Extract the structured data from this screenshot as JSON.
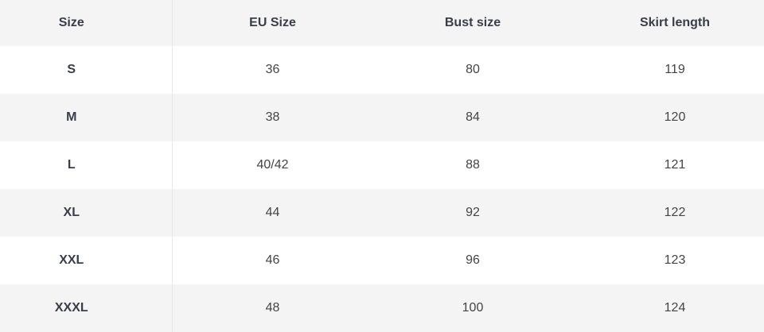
{
  "table": {
    "headers": [
      "Size",
      "EU Size",
      "Bust size",
      "Skirt length"
    ],
    "rows": [
      [
        "S",
        "36",
        "80",
        "119"
      ],
      [
        "M",
        "38",
        "84",
        "120"
      ],
      [
        "L",
        "40/42",
        "88",
        "121"
      ],
      [
        "XL",
        "44",
        "92",
        "122"
      ],
      [
        "XXL",
        "46",
        "96",
        "123"
      ],
      [
        "XXXL",
        "48",
        "100",
        "124"
      ]
    ]
  },
  "colors": {
    "text": "#383d4a",
    "stripe": "#f4f4f4",
    "divider": "#e6e6e6"
  }
}
